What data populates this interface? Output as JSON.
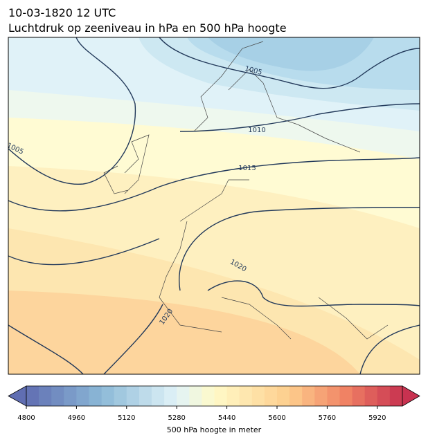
{
  "title": [
    "10-03-1820 12 UTC",
    "Luchtdruk op zeeniveau in hPa en 500 hPa hoogte"
  ],
  "contour_labels": [
    1005,
    1010,
    1005,
    1015,
    1020,
    1020
  ],
  "colorbar": {
    "label": "500 hPa hoogte in meter",
    "lim": [
      4800,
      6000
    ],
    "ticks": [
      4800,
      4960,
      5120,
      5280,
      5440,
      5600,
      5760,
      5920
    ]
  }
}
